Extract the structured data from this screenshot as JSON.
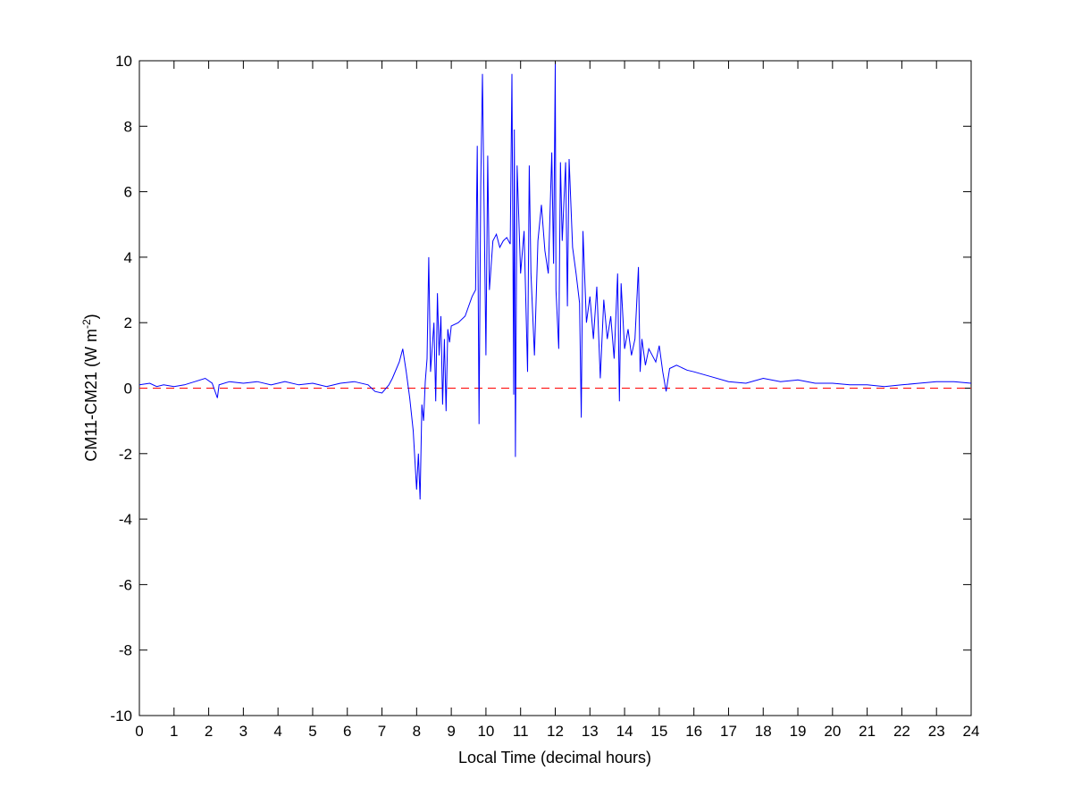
{
  "chart_data": {
    "type": "line",
    "title": "",
    "xlabel": "Local Time (decimal hours)",
    "ylabel": "CM11-CM21 (W m",
    "ylabel_sup": "-2",
    "ylabel_close": ")",
    "xlim": [
      0,
      24
    ],
    "ylim": [
      -10,
      10
    ],
    "xticks": [
      0,
      1,
      2,
      3,
      4,
      5,
      6,
      7,
      8,
      9,
      10,
      11,
      12,
      13,
      14,
      15,
      16,
      17,
      18,
      19,
      20,
      21,
      22,
      23,
      24
    ],
    "yticks": [
      -10,
      -8,
      -6,
      -4,
      -2,
      0,
      2,
      4,
      6,
      8,
      10
    ],
    "grid": false,
    "colors": {
      "series": "#0000ff",
      "reference": "#ff0000"
    },
    "reference_line": {
      "y": 0,
      "style": "dashed"
    },
    "series": [
      {
        "points": [
          [
            0,
            0.1
          ],
          [
            0.3,
            0.15
          ],
          [
            0.5,
            0.05
          ],
          [
            0.7,
            0.1
          ],
          [
            1,
            0.05
          ],
          [
            1.3,
            0.1
          ],
          [
            1.6,
            0.2
          ],
          [
            1.9,
            0.3
          ],
          [
            2.1,
            0.15
          ],
          [
            2.25,
            -0.3
          ],
          [
            2.3,
            0.1
          ],
          [
            2.6,
            0.2
          ],
          [
            3,
            0.15
          ],
          [
            3.4,
            0.2
          ],
          [
            3.8,
            0.1
          ],
          [
            4.2,
            0.2
          ],
          [
            4.6,
            0.1
          ],
          [
            5,
            0.15
          ],
          [
            5.4,
            0.05
          ],
          [
            5.8,
            0.15
          ],
          [
            6.2,
            0.2
          ],
          [
            6.6,
            0.1
          ],
          [
            6.8,
            -0.1
          ],
          [
            7.0,
            -0.15
          ],
          [
            7.2,
            0.1
          ],
          [
            7.3,
            0.3
          ],
          [
            7.5,
            0.8
          ],
          [
            7.6,
            1.2
          ],
          [
            7.7,
            0.5
          ],
          [
            7.8,
            -0.3
          ],
          [
            7.9,
            -1.3
          ],
          [
            8.0,
            -3.1
          ],
          [
            8.05,
            -2.0
          ],
          [
            8.1,
            -3.4
          ],
          [
            8.15,
            -0.5
          ],
          [
            8.2,
            -1.0
          ],
          [
            8.25,
            0.2
          ],
          [
            8.3,
            0.9
          ],
          [
            8.35,
            4.0
          ],
          [
            8.4,
            0.5
          ],
          [
            8.5,
            2.0
          ],
          [
            8.55,
            -0.4
          ],
          [
            8.6,
            2.9
          ],
          [
            8.65,
            1.0
          ],
          [
            8.7,
            2.2
          ],
          [
            8.75,
            -0.5
          ],
          [
            8.8,
            1.5
          ],
          [
            8.85,
            -0.7
          ],
          [
            8.9,
            1.8
          ],
          [
            8.95,
            1.4
          ],
          [
            9.0,
            1.9
          ],
          [
            9.2,
            2.0
          ],
          [
            9.4,
            2.2
          ],
          [
            9.6,
            2.8
          ],
          [
            9.7,
            3.0
          ],
          [
            9.75,
            7.4
          ],
          [
            9.8,
            -1.1
          ],
          [
            9.85,
            6.2
          ],
          [
            9.9,
            9.6
          ],
          [
            10.0,
            1.0
          ],
          [
            10.05,
            7.1
          ],
          [
            10.1,
            3.0
          ],
          [
            10.2,
            4.5
          ],
          [
            10.3,
            4.7
          ],
          [
            10.4,
            4.3
          ],
          [
            10.5,
            4.5
          ],
          [
            10.6,
            4.6
          ],
          [
            10.7,
            4.4
          ],
          [
            10.75,
            9.6
          ],
          [
            10.8,
            -0.2
          ],
          [
            10.82,
            7.9
          ],
          [
            10.85,
            -2.1
          ],
          [
            10.9,
            6.8
          ],
          [
            11.0,
            3.5
          ],
          [
            11.1,
            4.8
          ],
          [
            11.2,
            0.5
          ],
          [
            11.25,
            6.8
          ],
          [
            11.3,
            3.5
          ],
          [
            11.4,
            1.0
          ],
          [
            11.5,
            4.5
          ],
          [
            11.6,
            5.6
          ],
          [
            11.7,
            4.2
          ],
          [
            11.8,
            3.5
          ],
          [
            11.9,
            7.2
          ],
          [
            11.95,
            3.8
          ],
          [
            12.0,
            9.9
          ],
          [
            12.02,
            3.0
          ],
          [
            12.1,
            1.2
          ],
          [
            12.15,
            6.9
          ],
          [
            12.2,
            4.5
          ],
          [
            12.3,
            6.9
          ],
          [
            12.35,
            2.5
          ],
          [
            12.4,
            7.0
          ],
          [
            12.5,
            4.3
          ],
          [
            12.6,
            3.5
          ],
          [
            12.7,
            2.6
          ],
          [
            12.75,
            -0.9
          ],
          [
            12.8,
            4.8
          ],
          [
            12.9,
            2.0
          ],
          [
            13.0,
            2.8
          ],
          [
            13.1,
            1.5
          ],
          [
            13.2,
            3.1
          ],
          [
            13.3,
            0.3
          ],
          [
            13.4,
            2.7
          ],
          [
            13.5,
            1.5
          ],
          [
            13.6,
            2.2
          ],
          [
            13.7,
            0.9
          ],
          [
            13.8,
            3.5
          ],
          [
            13.85,
            -0.4
          ],
          [
            13.9,
            3.2
          ],
          [
            14.0,
            1.2
          ],
          [
            14.1,
            1.8
          ],
          [
            14.2,
            1.0
          ],
          [
            14.3,
            1.5
          ],
          [
            14.4,
            3.7
          ],
          [
            14.45,
            0.5
          ],
          [
            14.5,
            1.5
          ],
          [
            14.6,
            0.7
          ],
          [
            14.7,
            1.2
          ],
          [
            14.8,
            1.0
          ],
          [
            14.9,
            0.8
          ],
          [
            15.0,
            1.3
          ],
          [
            15.1,
            0.5
          ],
          [
            15.2,
            -0.1
          ],
          [
            15.3,
            0.6
          ],
          [
            15.5,
            0.7
          ],
          [
            15.8,
            0.55
          ],
          [
            16,
            0.5
          ],
          [
            16.5,
            0.35
          ],
          [
            17,
            0.2
          ],
          [
            17.5,
            0.15
          ],
          [
            18,
            0.3
          ],
          [
            18.5,
            0.2
          ],
          [
            19,
            0.25
          ],
          [
            19.5,
            0.15
          ],
          [
            20,
            0.15
          ],
          [
            20.5,
            0.1
          ],
          [
            21,
            0.1
          ],
          [
            21.5,
            0.05
          ],
          [
            22,
            0.1
          ],
          [
            22.5,
            0.15
          ],
          [
            23,
            0.2
          ],
          [
            23.5,
            0.2
          ],
          [
            24,
            0.15
          ]
        ]
      }
    ]
  }
}
